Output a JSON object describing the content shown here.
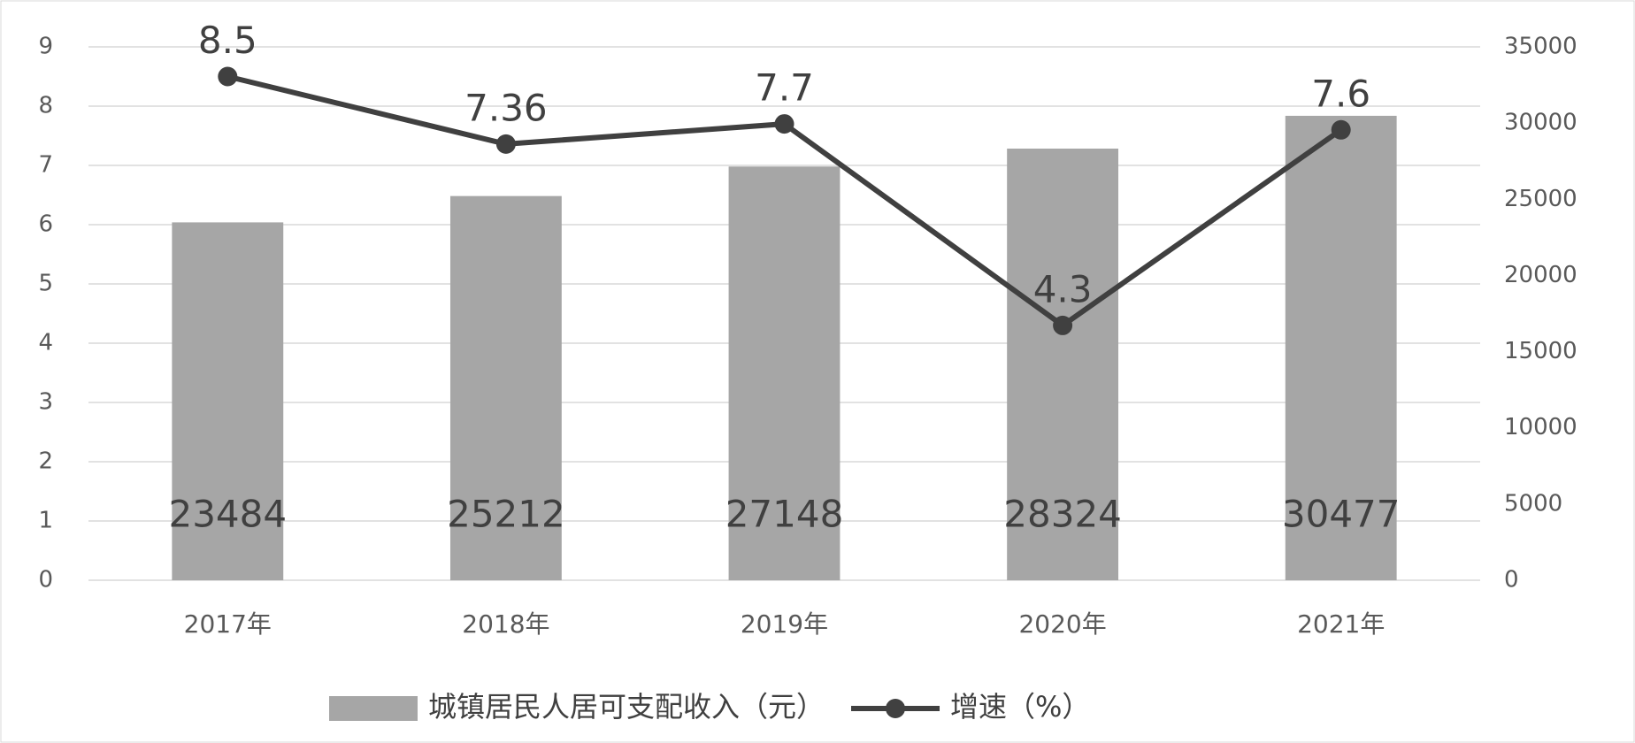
{
  "chart_data": {
    "type": "bar",
    "categories": [
      "2017年",
      "2018年",
      "2019年",
      "2020年",
      "2021年"
    ],
    "series": [
      {
        "name": "城镇居民人居可支配收入（元）",
        "type": "bar",
        "axis": "y2",
        "color": "#a6a6a6",
        "values": [
          23484,
          25212,
          27148,
          28324,
          30477
        ]
      },
      {
        "name": "增速（%）",
        "type": "line",
        "axis": "y",
        "color": "#404040",
        "values": [
          8.5,
          7.36,
          7.7,
          4.3,
          7.6
        ]
      }
    ],
    "ylim": [
      0,
      9
    ],
    "yticks": [
      0,
      1,
      2,
      3,
      4,
      5,
      6,
      7,
      8,
      9
    ],
    "y2lim": [
      0,
      35000
    ],
    "y2ticks": [
      0,
      5000,
      10000,
      15000,
      20000,
      25000,
      30000,
      35000
    ],
    "grid": true,
    "legend": "bottom"
  }
}
